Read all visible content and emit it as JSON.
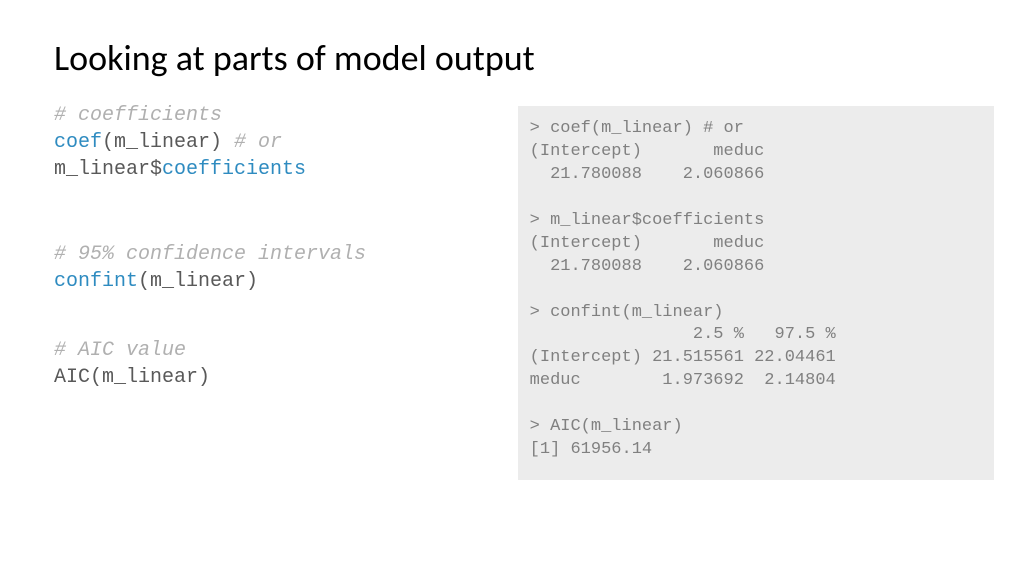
{
  "title": "Looking at parts of model output",
  "code": {
    "c1": "# coefficients",
    "l1a": "coef",
    "l1b": "(m_linear)",
    "l1c": " # or",
    "l2a": "m_linear$",
    "l2b": "coefficients",
    "c2": "# 95% confidence intervals",
    "l3a": "confint",
    "l3b": "(m_linear)",
    "c3": "# AIC value",
    "l4": "AIC(m_linear)"
  },
  "output": "> coef(m_linear) # or\n(Intercept)       meduc\n  21.780088    2.060866\n\n> m_linear$coefficients\n(Intercept)       meduc\n  21.780088    2.060866\n\n> confint(m_linear)\n                2.5 %   97.5 %\n(Intercept) 21.515561 22.04461\nmeduc        1.973692  2.14804\n\n> AIC(m_linear)\n[1] 61956.14",
  "colors": {
    "comment": "#b0b0b0",
    "keyword": "#2e8bc0",
    "text": "#595959",
    "output_bg": "#ececec",
    "output_text": "#808080"
  },
  "fonts": {
    "title_size": 36,
    "code_size": 20,
    "output_size": 17,
    "code_family": "Consolas, Courier New, monospace"
  }
}
